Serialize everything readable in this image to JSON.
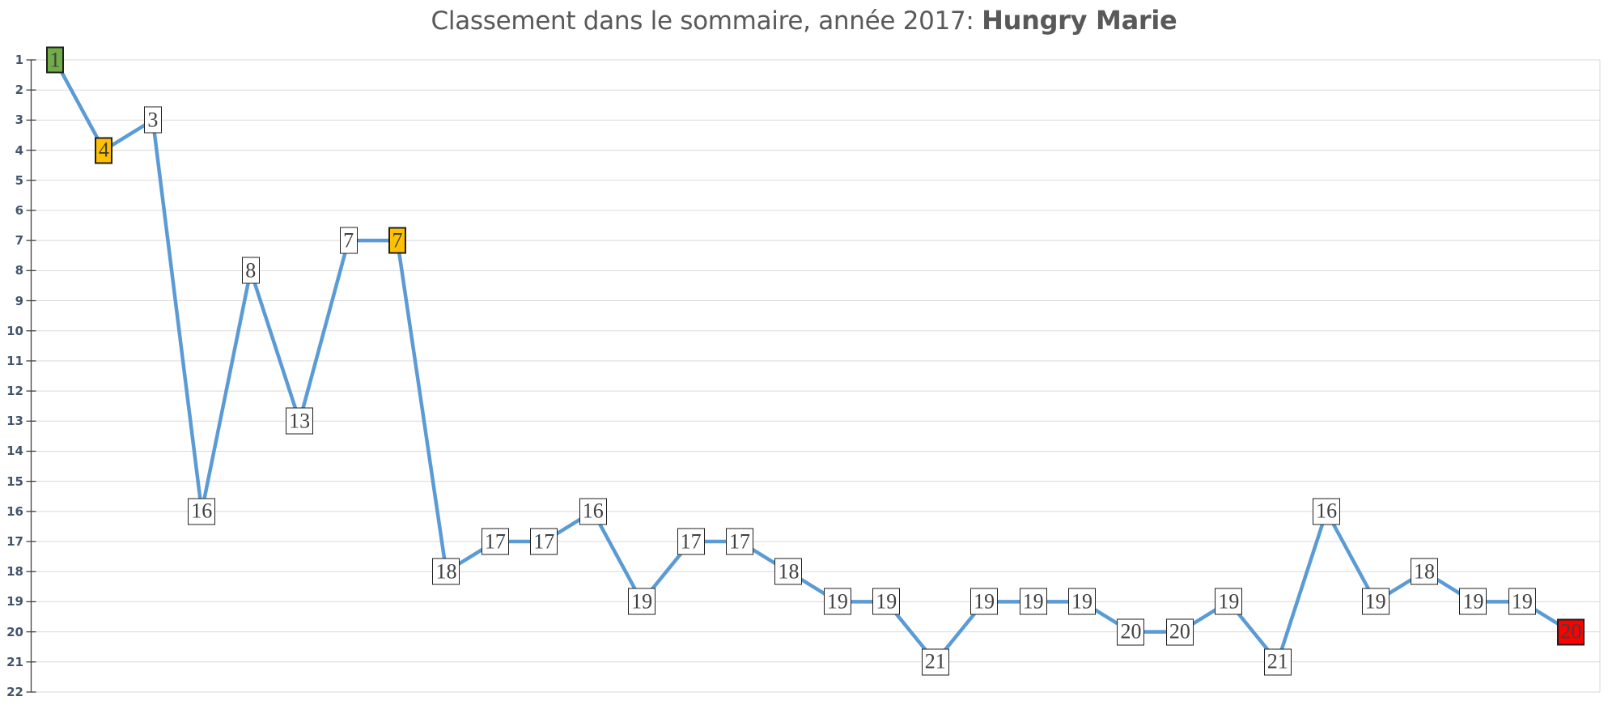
{
  "title": {
    "text": "Classement dans le sommaire, année 2017: Hungry Marie",
    "prefix": "Classement dans le sommaire, année 2017: ",
    "series_name": "Hungry Marie"
  },
  "chart_data": {
    "type": "line",
    "title": "Classement dans le sommaire, année 2017: Hungry Marie",
    "xlabel": "",
    "ylabel": "",
    "x": [
      1,
      2,
      3,
      4,
      5,
      6,
      7,
      8,
      9,
      10,
      11,
      12,
      13,
      14,
      15,
      16,
      17,
      18,
      19,
      20,
      21,
      22,
      23,
      24,
      25,
      26,
      27,
      28,
      29,
      30,
      31,
      32
    ],
    "series": [
      {
        "name": "Hungry Marie",
        "values": [
          1,
          4,
          3,
          16,
          8,
          13,
          7,
          7,
          18,
          17,
          17,
          16,
          19,
          17,
          17,
          18,
          19,
          19,
          21,
          19,
          19,
          19,
          20,
          20,
          19,
          21,
          16,
          19,
          18,
          19,
          19,
          20
        ]
      }
    ],
    "point_labels": [
      1,
      4,
      3,
      16,
      8,
      13,
      7,
      7,
      18,
      17,
      17,
      16,
      19,
      17,
      17,
      18,
      19,
      19,
      21,
      19,
      19,
      19,
      20,
      20,
      19,
      21,
      16,
      19,
      18,
      19,
      19,
      20
    ],
    "ylim": [
      1,
      22
    ],
    "y_inverted": true,
    "y_ticks": [
      1,
      2,
      3,
      4,
      5,
      6,
      7,
      8,
      9,
      10,
      11,
      12,
      13,
      14,
      15,
      16,
      17,
      18,
      19,
      20,
      21,
      22
    ],
    "x_tick_labels": [],
    "grid": true,
    "legend_position": "none",
    "highlight_points": [
      {
        "index": 0,
        "color": "#70AD47"
      },
      {
        "index": 1,
        "color": "#FFC000"
      },
      {
        "index": 7,
        "color": "#FFC000"
      },
      {
        "index": 31,
        "color": "#FF0000"
      }
    ],
    "colors": {
      "line": "#5B9BD5",
      "grid": "#D9D9D9",
      "axis": "#404040",
      "tick_label": "#44546A",
      "title": "#595959",
      "label_text": "#404040",
      "label_bg_default": "#FFFFFF",
      "label_border": "#1F1F1F"
    }
  }
}
